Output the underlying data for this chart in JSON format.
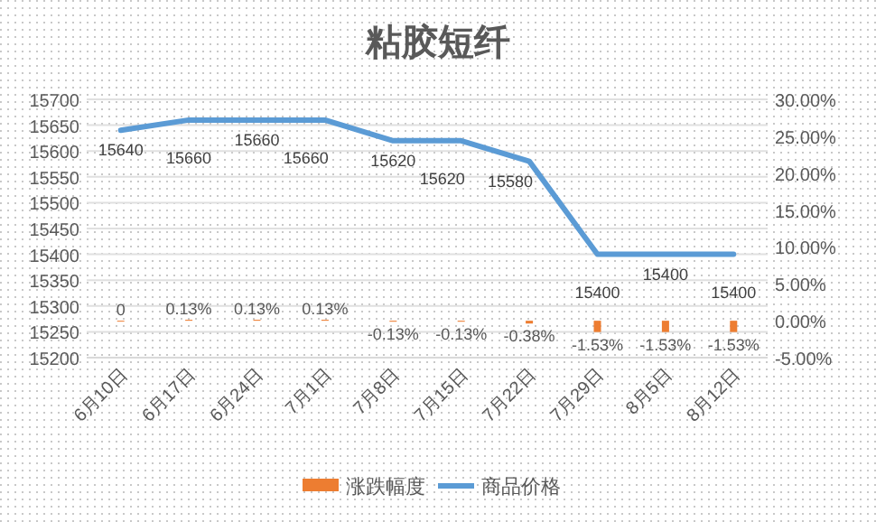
{
  "chart_data": {
    "type": "bar",
    "title": "粘胶短纤",
    "categories": [
      "6月10日",
      "6月17日",
      "6月24日",
      "7月1日",
      "7月8日",
      "7月15日",
      "7月22日",
      "7月29日",
      "8月5日",
      "8月12日"
    ],
    "series": [
      {
        "name": "涨跌幅度",
        "axis": "y2",
        "color": "#ed7d31",
        "values": [
          0,
          0.13,
          0.13,
          0.13,
          -0.13,
          -0.13,
          -0.38,
          -1.53,
          -1.53,
          -1.53
        ],
        "value_labels": [
          "0",
          "0.13%",
          "0.13%",
          "0.13%",
          "-0.13%",
          "-0.13%",
          "-0.38%",
          "-1.53%",
          "-1.53%",
          "-1.53%"
        ]
      },
      {
        "name": "商品价格",
        "type": "line",
        "color": "#5b9bd5",
        "values": [
          15640,
          15660,
          15660,
          15660,
          15620,
          15620,
          15580,
          15400,
          15400,
          15400
        ]
      }
    ],
    "data_labels": true,
    "ylim": [
      15200,
      15700
    ],
    "yticks": [
      15200,
      15250,
      15300,
      15350,
      15400,
      15450,
      15500,
      15550,
      15600,
      15650,
      15700
    ],
    "y2lim": [
      -5,
      30
    ],
    "y2ticks": [
      {
        "value": -5,
        "label": "-5.00%"
      },
      {
        "value": 0,
        "label": "0.00%"
      },
      {
        "value": 5,
        "label": "5.00%"
      },
      {
        "value": 10,
        "label": "10.00%"
      },
      {
        "value": 15,
        "label": "15.00%"
      },
      {
        "value": 20,
        "label": "20.00%"
      },
      {
        "value": 25,
        "label": "25.00%"
      },
      {
        "value": 30,
        "label": "30.00%"
      }
    ],
    "grid": "y",
    "legend": "bottom"
  }
}
